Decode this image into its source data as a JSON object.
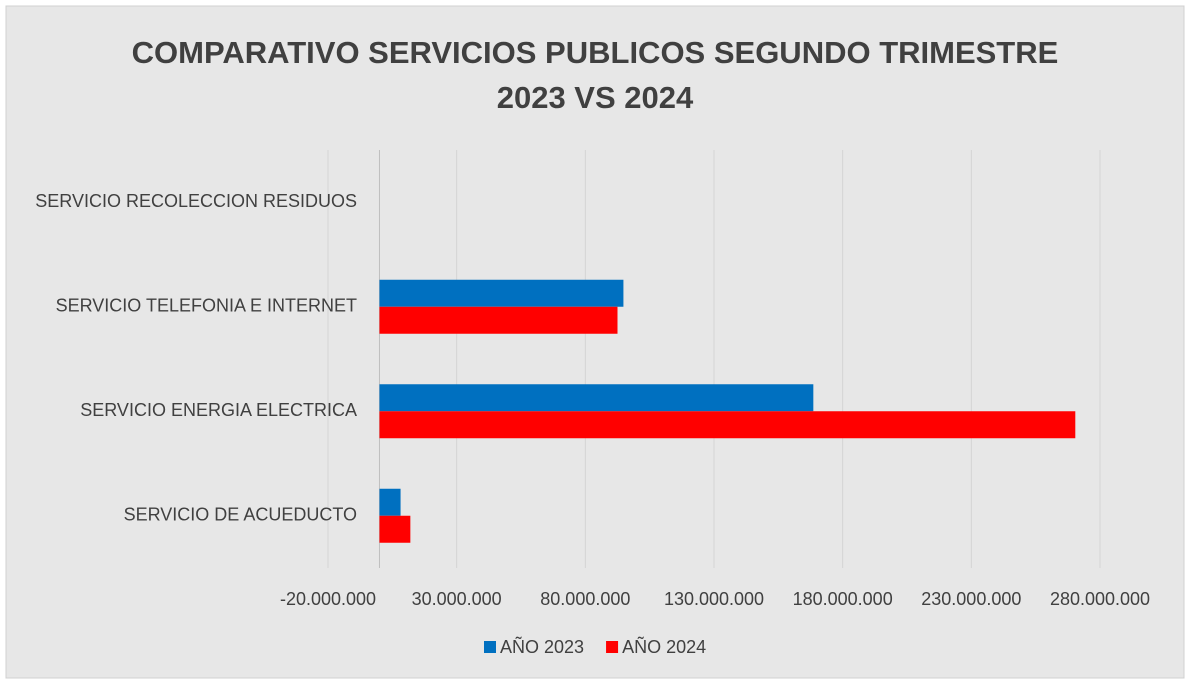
{
  "chart_data": {
    "type": "hbar",
    "title": [
      "COMPARATIVO SERVICIOS PUBLICOS SEGUNDO TRIMESTRE",
      "2023 VS 2024"
    ],
    "categories": [
      "SERVICIO DE ACUEDUCTO",
      "SERVICIO ENERGIA ELECTRICA",
      "SERVICIO TELEFONIA E INTERNET",
      "SERVICIO RECOLECCION RESIDUOS"
    ],
    "series": [
      {
        "name": "AÑO 2023",
        "color": "#0070c0",
        "values": [
          8200000,
          168600000,
          94800000,
          0
        ]
      },
      {
        "name": "AÑO 2024",
        "color": "#ff0000",
        "values": [
          12000000,
          270400000,
          92500000,
          0
        ]
      }
    ],
    "xlim": [
      -20000000,
      280000000
    ],
    "xticks": [
      {
        "value": -20000000,
        "label": "-20.000.000"
      },
      {
        "value": 30000000,
        "label": "30.000.000"
      },
      {
        "value": 80000000,
        "label": "80.000.000"
      },
      {
        "value": 130000000,
        "label": "130.000.000"
      },
      {
        "value": 180000000,
        "label": "180.000.000"
      },
      {
        "value": 230000000,
        "label": "230.000.000"
      },
      {
        "value": 280000000,
        "label": "280.000.000"
      }
    ],
    "grid": true,
    "legend": "bottom"
  }
}
